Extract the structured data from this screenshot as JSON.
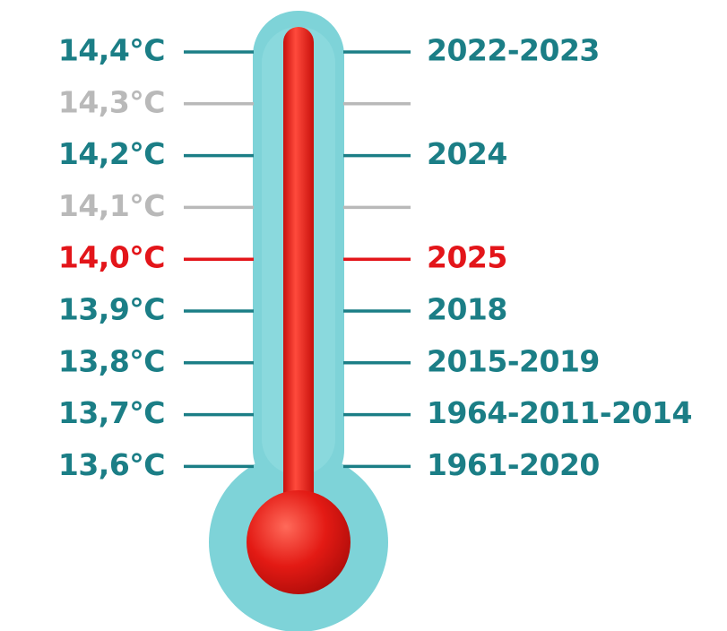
{
  "rows": [
    {
      "temperature": "14,4°C",
      "years": "2022-2023",
      "color": "#1b7e86"
    },
    {
      "temperature": "14,3°C",
      "color": "#b9b9b9"
    },
    {
      "temperature": "14,2°C",
      "years": "2024",
      "color": "#1b7e86"
    },
    {
      "temperature": "14,1°C",
      "color": "#b9b9b9"
    },
    {
      "temperature": "14,0°C",
      "years": "2025",
      "color": "#e3151a"
    },
    {
      "temperature": "13,9°C",
      "years": "2018",
      "color": "#1b7e86"
    },
    {
      "temperature": "13,8°C",
      "years": "2015-2019",
      "color": "#1b7e86"
    },
    {
      "temperature": "13,7°C",
      "years": "1964-2011-2014",
      "color": "#1b7e86"
    },
    {
      "temperature": "13,6°C",
      "years": "1961-2020",
      "color": "#1b7e86"
    }
  ]
}
